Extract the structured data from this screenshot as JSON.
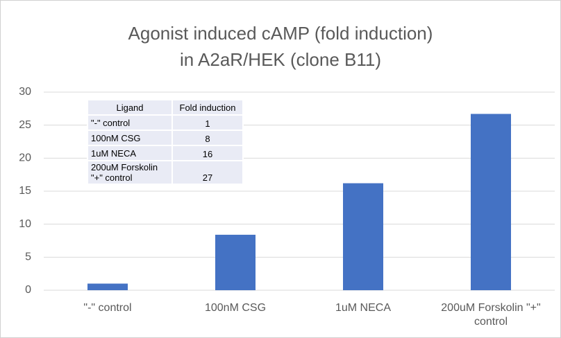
{
  "chart_data": {
    "type": "bar",
    "title": [
      "Agonist induced cAMP (fold induction)",
      "in A2aR/HEK (clone B11)"
    ],
    "categories": [
      "\"-\" control",
      "100nM CSG",
      "1uM NECA",
      "200uM Forskolin \"+\" control"
    ],
    "values": [
      1.0,
      8.4,
      16.2,
      26.7
    ],
    "color": "#4472c4",
    "ylim": [
      0,
      30
    ],
    "yticks": [
      0,
      5,
      10,
      15,
      20,
      25,
      30
    ],
    "grid": true,
    "table": {
      "header": [
        "Ligand",
        "Fold induction"
      ],
      "rows": [
        [
          [
            "\"-\" control"
          ],
          1
        ],
        [
          [
            "100nM CSG"
          ],
          8
        ],
        [
          [
            "1uM NECA"
          ],
          16
        ],
        [
          [
            "200uM Forskolin",
            "\"+\" control"
          ],
          27
        ]
      ]
    }
  }
}
